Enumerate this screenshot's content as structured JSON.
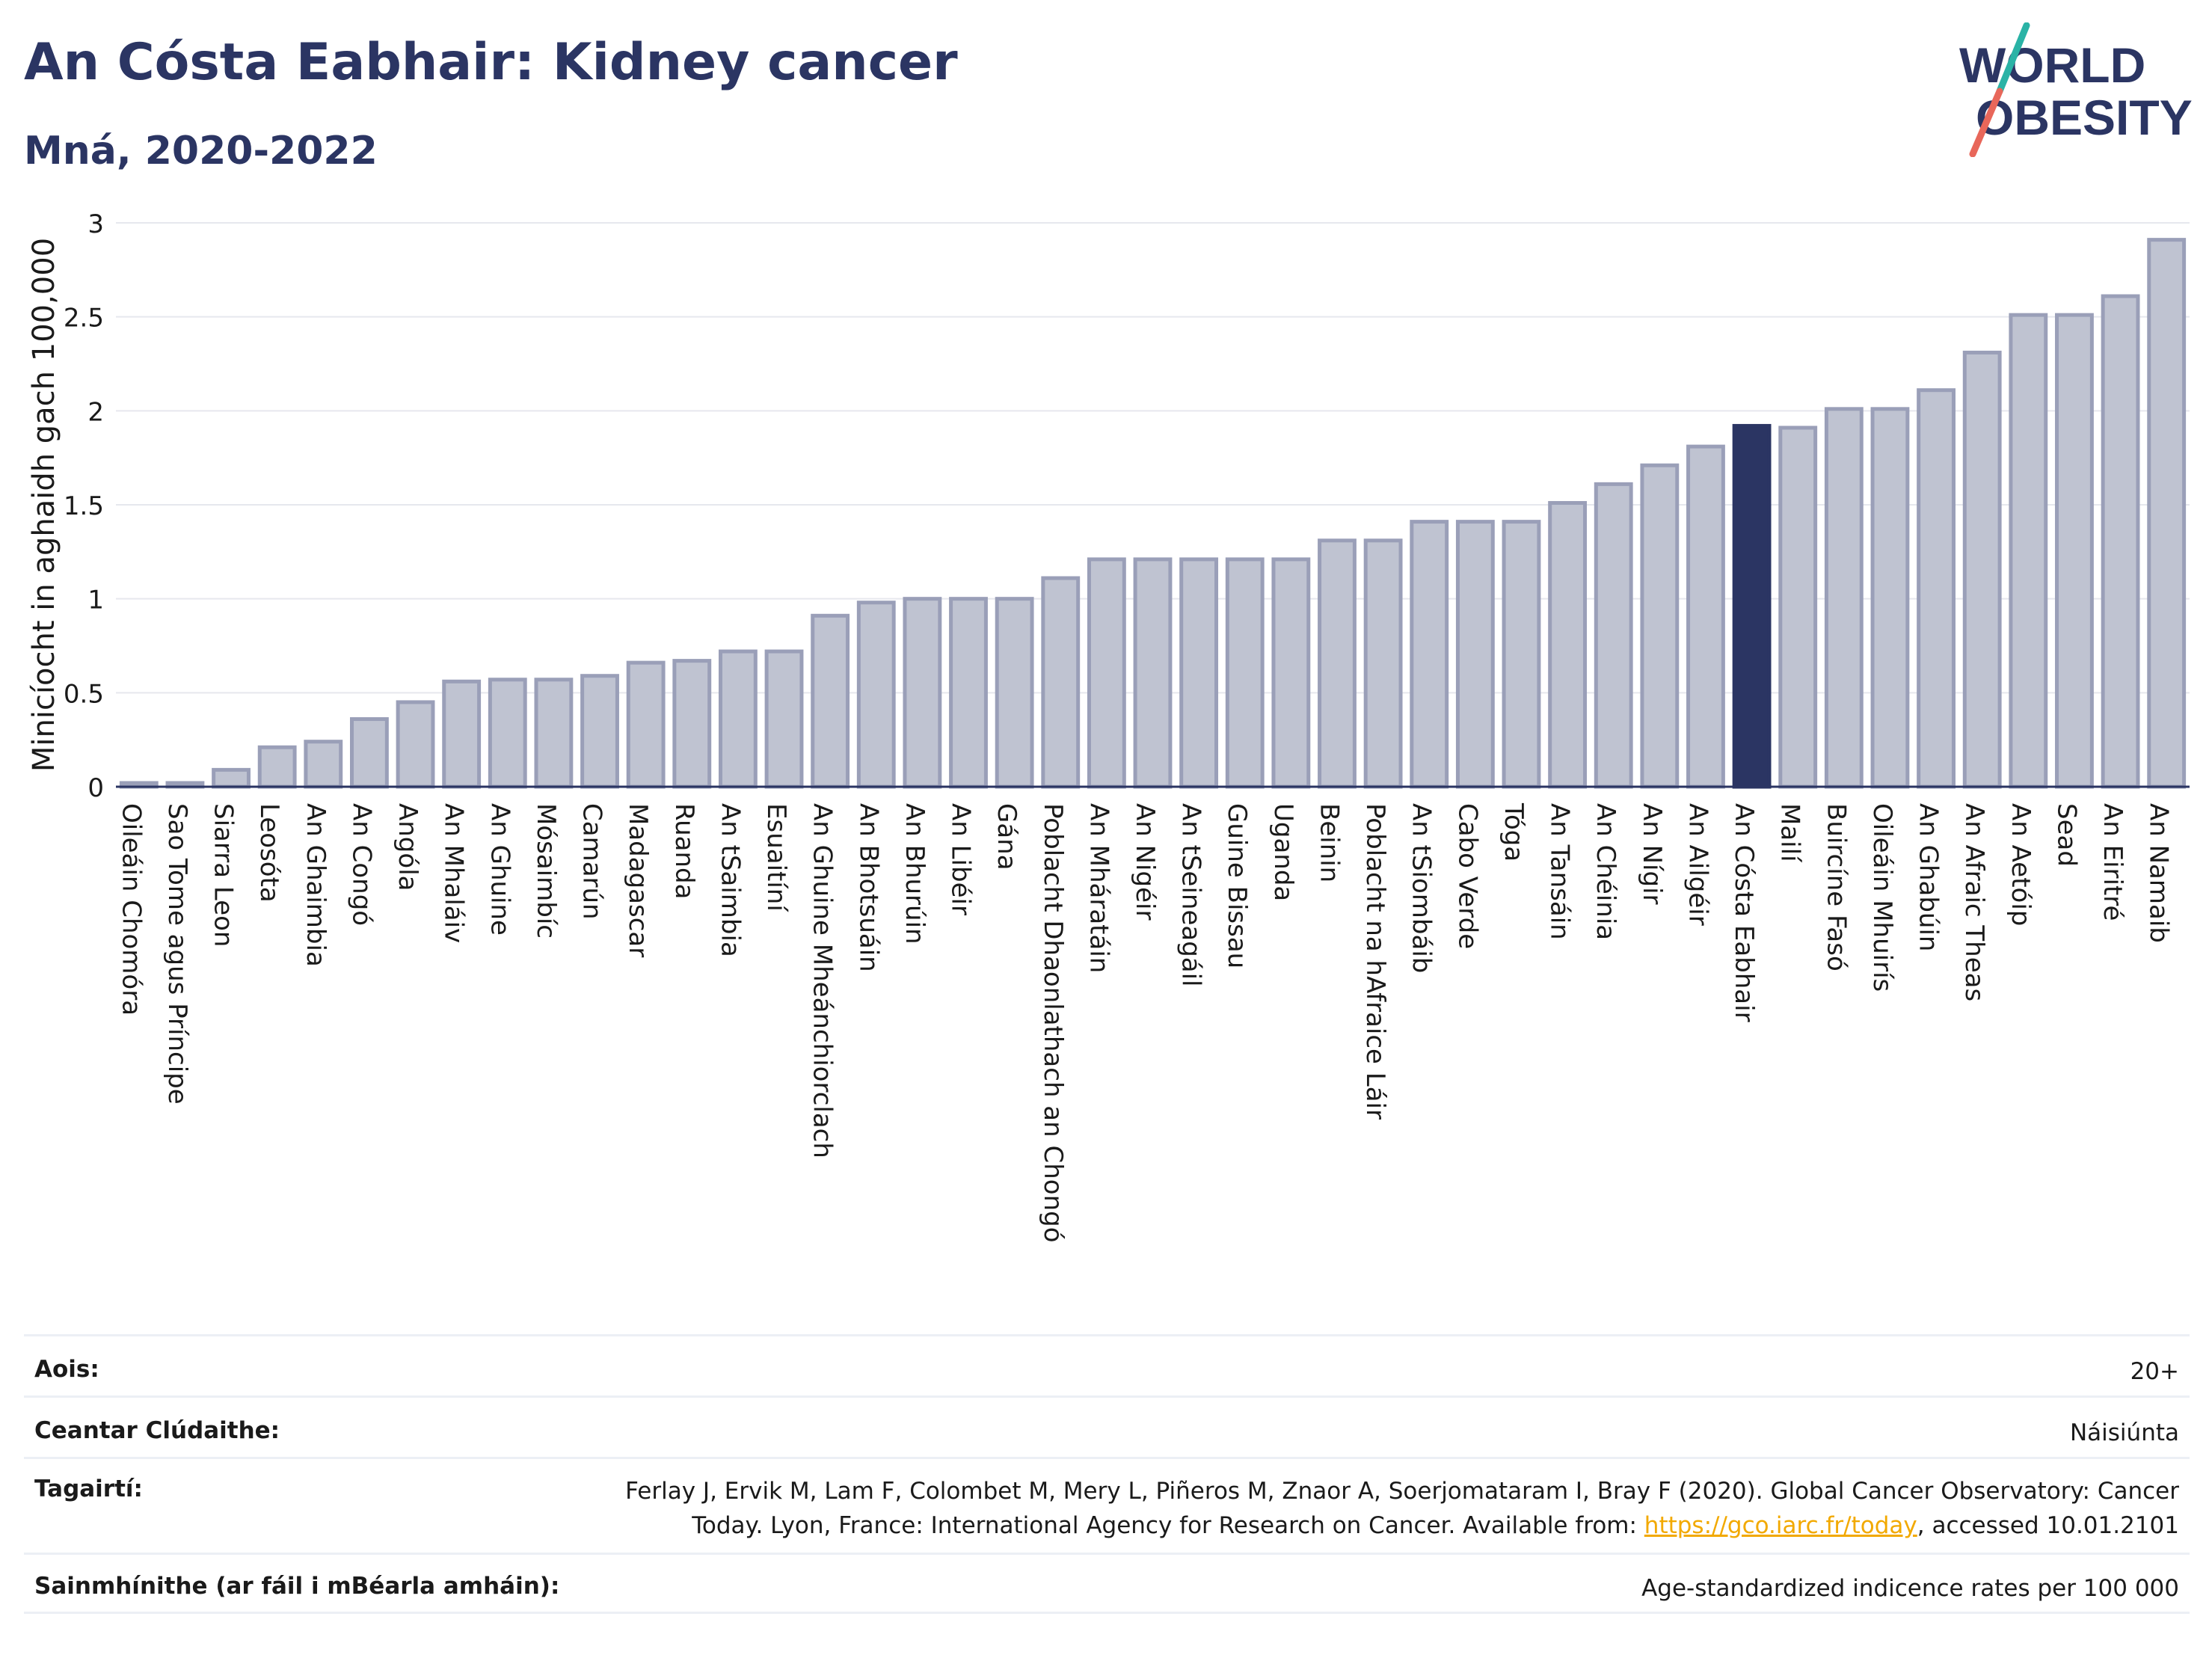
{
  "header": {
    "title": "An Cósta Eabhair: Kidney cancer",
    "subtitle": "Mná, 2020-2022"
  },
  "logo": {
    "line1": "WORLD",
    "line2": "OBESITY",
    "colors": {
      "text": "#2b3563",
      "slash_teal": "#2ab3a6",
      "slash_red": "#e8675a"
    }
  },
  "colors": {
    "bar": "#bfc3d1",
    "bar_border": "#9a9fb8",
    "highlight": "#2b3563",
    "grid": "#e6e8ee",
    "axis": "#2b3563"
  },
  "chart_data": {
    "type": "bar",
    "title": "",
    "xlabel": "",
    "ylabel": "Minicíocht in aghaidh gach 100,000",
    "ylim": [
      0,
      3
    ],
    "yticks": [
      "0",
      "0.5",
      "1",
      "1.5",
      "2",
      "2.5",
      "3"
    ],
    "highlight": "An Cósta Eabhair",
    "grid": true,
    "categories": [
      "Oileáin Chomóra",
      "Sao Tome agus Príncipe",
      "Siarra Leon",
      "Leosóta",
      "An Ghaimbia",
      "An Congó",
      "Angóla",
      "An Mhaláiv",
      "An Ghuine",
      "Mósaimbíc",
      "Camarún",
      "Madagascar",
      "Ruanda",
      "An tSaimbia",
      "Esuaitíní",
      "An Ghuine Mheánchiorclach",
      "An Bhotsuáin",
      "An Bhurúin",
      "An Libéir",
      "Gána",
      "Poblacht Dhaonlathach an Chongó",
      "An Mháratáin",
      "An Nigéir",
      "An tSeineagáil",
      "Guine Bissau",
      "Uganda",
      "Beinin",
      "Poblacht na hAfraice Láir",
      "An tSiombáib",
      "Cabo Verde",
      "Tóga",
      "An Tansáin",
      "An Chéinia",
      "An Nígir",
      "An Ailgéir",
      "An Cósta Eabhair",
      "Mailí",
      "Buircíne Fasó",
      "Oileáin Mhuirís",
      "An Ghabúin",
      "An Afraic Theas",
      "An Aetóip",
      "Sead",
      "An Eiritré",
      "An Namaib"
    ],
    "values": [
      0.02,
      0.02,
      0.09,
      0.21,
      0.24,
      0.36,
      0.45,
      0.56,
      0.57,
      0.57,
      0.59,
      0.66,
      0.67,
      0.72,
      0.72,
      0.91,
      0.98,
      1.0,
      1.0,
      1.0,
      1.11,
      1.21,
      1.21,
      1.21,
      1.21,
      1.21,
      1.31,
      1.31,
      1.41,
      1.41,
      1.41,
      1.51,
      1.61,
      1.71,
      1.81,
      1.92,
      1.91,
      2.01,
      2.01,
      2.11,
      2.31,
      2.51,
      2.51,
      2.61,
      2.91
    ]
  },
  "meta": {
    "rows": [
      {
        "label": "Aois:",
        "value": "20+"
      },
      {
        "label": "Ceantar Clúdaithe:",
        "value": "Náisiúnta"
      },
      {
        "label": "Tagairtí:",
        "value_line1": "Ferlay J, Ervik M, Lam F, Colombet M, Mery L, Piñeros M, Znaor A, Soerjomataram I, Bray F (2020). Global Cancer Observatory: Cancer",
        "value_line2_pre": "Today. Lyon, France: International Agency for Research on Cancer. Available from: ",
        "link": "https://gco.iarc.fr/today",
        "value_line2_post": ", accessed 10.01.2101"
      },
      {
        "label": "Sainmhínithe (ar fáil i mBéarla amháin):",
        "value": "Age-standardized indicence rates per 100 000"
      }
    ]
  }
}
